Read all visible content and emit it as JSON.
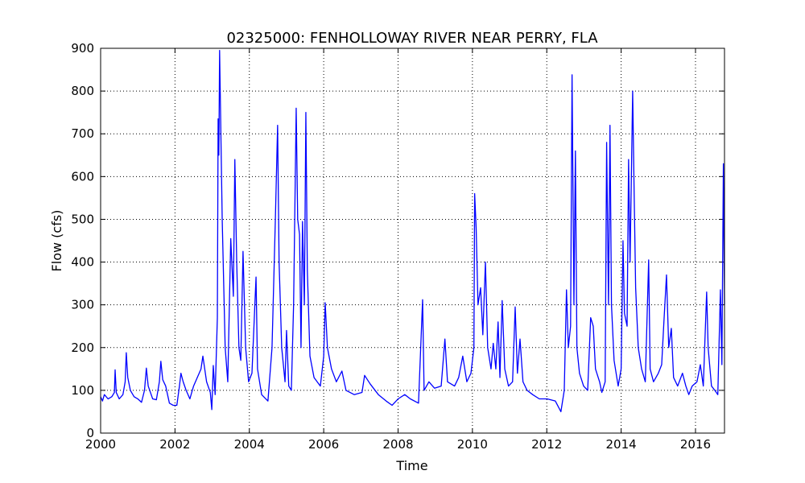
{
  "chart_data": {
    "type": "line",
    "title": "02325000: FENHOLLOWAY RIVER NEAR PERRY, FLA",
    "x_label": "Time",
    "y_label": "Flow (cfs)",
    "color": "#0000ff",
    "grid": true,
    "xlim": [
      2000,
      2016.78
    ],
    "xticks": [
      2000,
      2002,
      2004,
      2006,
      2008,
      2010,
      2012,
      2014,
      2016
    ],
    "ylim": [
      0,
      900
    ],
    "yticks": [
      0,
      100,
      200,
      300,
      400,
      500,
      600,
      700,
      800,
      900
    ],
    "x": [
      2000.0,
      2000.05,
      2000.1,
      2000.2,
      2000.3,
      2000.37,
      2000.39,
      2000.42,
      2000.5,
      2000.6,
      2000.66,
      2000.69,
      2000.73,
      2000.8,
      2000.9,
      2001.0,
      2001.1,
      2001.18,
      2001.23,
      2001.28,
      2001.4,
      2001.5,
      2001.58,
      2001.62,
      2001.67,
      2001.75,
      2001.85,
      2001.95,
      2002.05,
      2002.12,
      2002.16,
      2002.22,
      2002.3,
      2002.4,
      2002.5,
      2002.6,
      2002.7,
      2002.75,
      2002.85,
      2002.95,
      2002.99,
      2003.03,
      2003.08,
      2003.14,
      2003.16,
      2003.18,
      2003.2,
      2003.27,
      2003.35,
      2003.42,
      2003.5,
      2003.57,
      2003.61,
      2003.66,
      2003.72,
      2003.77,
      2003.83,
      2003.9,
      2003.98,
      2004.07,
      2004.18,
      2004.22,
      2004.33,
      2004.5,
      2004.61,
      2004.7,
      2004.76,
      2004.8,
      2004.87,
      2004.96,
      2005.0,
      2005.06,
      2005.13,
      2005.19,
      2005.26,
      2005.3,
      2005.35,
      2005.39,
      2005.43,
      2005.48,
      2005.52,
      2005.56,
      2005.63,
      2005.74,
      2005.91,
      2006.0,
      2006.04,
      2006.1,
      2006.21,
      2006.34,
      2006.49,
      2006.6,
      2006.82,
      2007.03,
      2007.1,
      2007.25,
      2007.47,
      2007.68,
      2007.84,
      2008.0,
      2008.18,
      2008.33,
      2008.55,
      2008.66,
      2008.7,
      2008.83,
      2008.98,
      2009.16,
      2009.26,
      2009.33,
      2009.52,
      2009.63,
      2009.74,
      2009.85,
      2009.96,
      2010.04,
      2010.06,
      2010.1,
      2010.15,
      2010.22,
      2010.28,
      2010.35,
      2010.41,
      2010.5,
      2010.56,
      2010.63,
      2010.69,
      2010.74,
      2010.8,
      2010.87,
      2010.97,
      2011.08,
      2011.15,
      2011.21,
      2011.28,
      2011.36,
      2011.47,
      2011.62,
      2011.8,
      2012.01,
      2012.23,
      2012.38,
      2012.47,
      2012.53,
      2012.58,
      2012.64,
      2012.68,
      2012.73,
      2012.77,
      2012.81,
      2012.88,
      2012.99,
      2013.1,
      2013.18,
      2013.25,
      2013.31,
      2013.42,
      2013.48,
      2013.57,
      2013.61,
      2013.66,
      2013.7,
      2013.74,
      2013.81,
      2013.92,
      2014.0,
      2014.05,
      2014.09,
      2014.16,
      2014.2,
      2014.24,
      2014.31,
      2014.35,
      2014.39,
      2014.46,
      2014.55,
      2014.65,
      2014.74,
      2014.78,
      2014.87,
      2015.0,
      2015.09,
      2015.15,
      2015.22,
      2015.28,
      2015.35,
      2015.41,
      2015.52,
      2015.65,
      2015.74,
      2015.82,
      2015.91,
      2016.04,
      2016.13,
      2016.21,
      2016.3,
      2016.34,
      2016.43,
      2016.52,
      2016.6,
      2016.67,
      2016.71,
      2016.75,
      2016.78
    ],
    "values": [
      85,
      75,
      90,
      80,
      85,
      95,
      148,
      95,
      80,
      90,
      120,
      188,
      130,
      100,
      85,
      80,
      72,
      100,
      152,
      110,
      80,
      78,
      120,
      168,
      125,
      110,
      70,
      65,
      65,
      110,
      140,
      120,
      100,
      80,
      110,
      130,
      150,
      180,
      120,
      95,
      55,
      158,
      90,
      270,
      735,
      650,
      895,
      500,
      200,
      120,
      455,
      320,
      640,
      400,
      200,
      170,
      425,
      200,
      120,
      140,
      365,
      150,
      90,
      75,
      200,
      500,
      720,
      400,
      200,
      120,
      240,
      110,
      100,
      300,
      760,
      500,
      465,
      200,
      495,
      300,
      750,
      380,
      180,
      130,
      110,
      180,
      305,
      200,
      150,
      120,
      145,
      100,
      90,
      95,
      135,
      115,
      90,
      75,
      65,
      80,
      90,
      80,
      70,
      312,
      100,
      120,
      105,
      110,
      220,
      120,
      110,
      130,
      180,
      120,
      140,
      200,
      560,
      480,
      300,
      340,
      230,
      400,
      200,
      150,
      210,
      150,
      260,
      130,
      310,
      150,
      110,
      120,
      295,
      140,
      220,
      120,
      100,
      90,
      80,
      80,
      75,
      50,
      100,
      335,
      200,
      250,
      838,
      300,
      660,
      200,
      140,
      110,
      100,
      270,
      250,
      150,
      120,
      95,
      120,
      680,
      300,
      720,
      300,
      170,
      110,
      150,
      450,
      280,
      250,
      640,
      400,
      800,
      560,
      340,
      200,
      150,
      120,
      405,
      150,
      120,
      140,
      160,
      260,
      370,
      200,
      245,
      130,
      110,
      140,
      110,
      90,
      110,
      120,
      160,
      110,
      330,
      200,
      110,
      100,
      90,
      335,
      160,
      630,
      300
    ]
  }
}
